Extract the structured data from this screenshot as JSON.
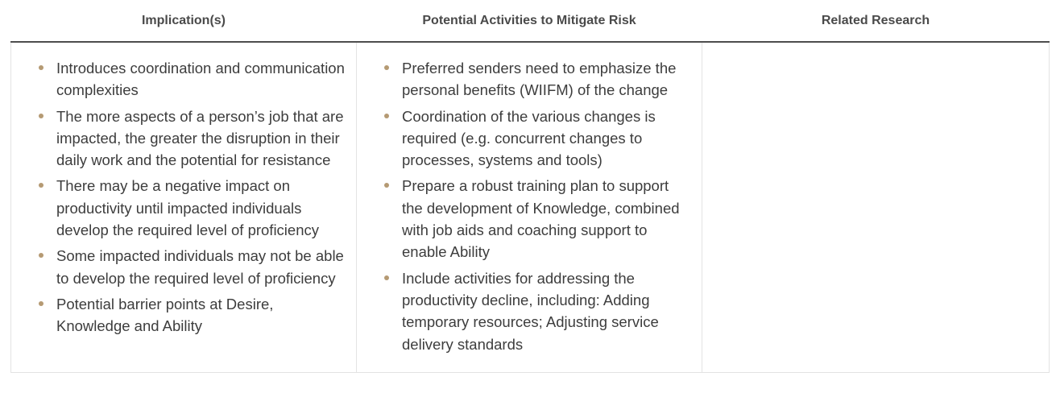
{
  "table": {
    "headers": [
      "Implication(s)",
      "Potential Activities to Mitigate Risk",
      "Related Research"
    ],
    "columns": {
      "implications": [
        "Introduces coordination and communication complexities",
        "The more aspects of a person’s job that are impacted, the greater the disruption in their daily work and the potential for resistance",
        "There may be a negative impact on productivity until impacted individuals develop the required level of proficiency",
        "Some impacted individuals may not be able to develop the required level of proficiency",
        "Potential barrier points at Desire, Knowledge and Ability"
      ],
      "activities": [
        "Preferred senders need to emphasize the personal benefits (WIIFM) of the change",
        "Coordination of the various changes is required (e.g. concurrent changes to processes, systems and tools)",
        "Prepare a robust training plan to support the development of Knowledge, combined with job aids and coaching support to enable Ability",
        "Include activities for addressing the productivity decline, including: Adding temporary resources; Adjusting service delivery standards"
      ],
      "research": []
    }
  },
  "colors": {
    "bullet": "#b59a73",
    "header_rule": "#4d4d4d",
    "cell_border": "#e3e3e3",
    "text": "#3d3d3d"
  }
}
